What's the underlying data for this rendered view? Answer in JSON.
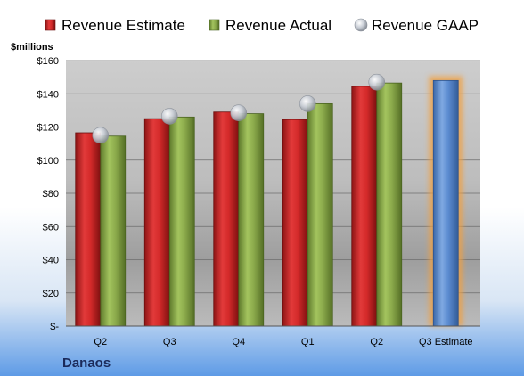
{
  "chart_data": {
    "type": "bar",
    "company": "Danaos",
    "ylabel": "$millions",
    "ylim": [
      0,
      160
    ],
    "yticks": [
      0,
      20,
      40,
      60,
      80,
      100,
      120,
      140,
      160
    ],
    "ytick_labels": [
      "$-",
      "$20",
      "$40",
      "$60",
      "$80",
      "$100",
      "$120",
      "$140",
      "$160"
    ],
    "categories": [
      "Q2",
      "Q3",
      "Q4",
      "Q1",
      "Q2",
      "Q3 Estimate"
    ],
    "legend_position": "top",
    "grid": true,
    "series": [
      {
        "name": "Revenue Estimate",
        "kind": "bar",
        "color": "#D42A2A",
        "values": [
          116.5,
          125,
          129,
          124.5,
          144.5,
          null
        ]
      },
      {
        "name": "Revenue Actual",
        "kind": "bar",
        "color": "#8CAB4C",
        "values": [
          114.5,
          126,
          128,
          134,
          146.5,
          null
        ]
      },
      {
        "name": "Revenue GAAP",
        "kind": "marker",
        "color": "#B8BEC6",
        "values": [
          115,
          126.5,
          128.5,
          134,
          147,
          null
        ]
      }
    ],
    "forecast": {
      "category": "Q3 Estimate",
      "value": 148,
      "color": "#5B8BD0",
      "glow": "#F2A040"
    }
  }
}
